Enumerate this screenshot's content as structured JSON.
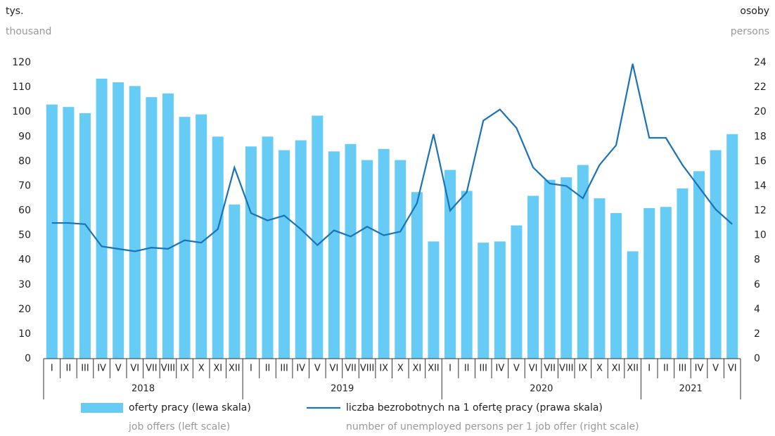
{
  "chart_data": {
    "type": "bar_line",
    "y_label": "tys.",
    "y_label_en": "thousand",
    "y2_label": "osoby",
    "y2_label_en": "persons",
    "categories": [
      "I",
      "II",
      "III",
      "IV",
      "V",
      "VI",
      "VII",
      "VIII",
      "IX",
      "X",
      "XI",
      "XII",
      "I",
      "II",
      "III",
      "IV",
      "V",
      "VI",
      "VII",
      "VIII",
      "IX",
      "X",
      "XI",
      "XII",
      "I",
      "II",
      "III",
      "IV",
      "V",
      "VI",
      "VII",
      "VIII",
      "IX",
      "X",
      "XI",
      "XII",
      "I",
      "II",
      "III",
      "IV",
      "V",
      "VI"
    ],
    "groups": [
      "2018",
      "2019",
      "2020",
      "2021"
    ],
    "series": [
      {
        "name": "oferty pracy (lewa skala)",
        "name_en": "job offers (left scale)",
        "type": "bar",
        "color": "#66ccf5",
        "values": [
          103,
          102,
          99.5,
          113.5,
          112,
          110.5,
          106,
          107.5,
          98,
          99,
          90,
          62.5,
          86,
          90,
          84.5,
          88.5,
          98.5,
          84,
          87,
          80.5,
          85,
          80.5,
          67.5,
          47.5,
          76.5,
          68,
          47,
          47.5,
          54,
          66,
          72.5,
          73.5,
          78.5,
          65,
          59,
          43.5,
          61,
          61.5,
          69,
          76,
          84.5,
          91
        ]
      },
      {
        "name": "liczba bezrobotnych na 1 ofertę pracy (prawa skala)",
        "name_en": "number of unemployed persons per 1 job offer (right scale)",
        "type": "line",
        "axis": "y2",
        "color": "#1b72b5",
        "values": [
          11.0,
          11.0,
          10.9,
          9.1,
          8.9,
          8.7,
          9.0,
          8.9,
          9.6,
          9.4,
          10.5,
          15.5,
          11.8,
          11.2,
          11.6,
          10.5,
          9.2,
          10.4,
          9.9,
          10.7,
          10.0,
          10.3,
          12.6,
          18.2,
          12.0,
          13.5,
          19.3,
          20.2,
          18.7,
          15.5,
          14.2,
          14.0,
          13.0,
          15.7,
          17.3,
          23.9,
          17.9,
          17.9,
          15.7,
          13.9,
          12.1,
          10.9
        ]
      }
    ],
    "ylim": [
      0,
      120
    ],
    "yticks": [
      0,
      10,
      20,
      30,
      40,
      50,
      60,
      70,
      80,
      90,
      100,
      110,
      120
    ],
    "y2lim": [
      0,
      24
    ],
    "y2ticks": [
      0,
      2,
      4,
      6,
      8,
      10,
      12,
      14,
      16,
      18,
      20,
      22,
      24
    ]
  }
}
